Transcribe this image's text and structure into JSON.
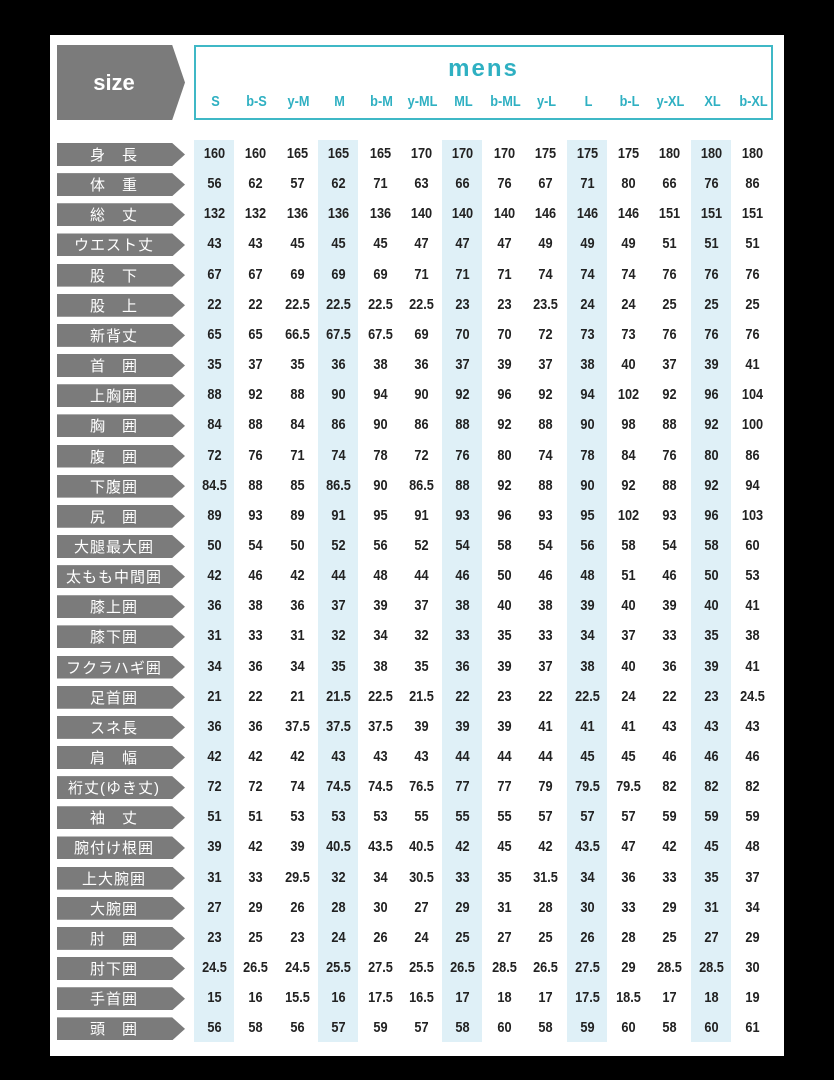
{
  "size_label": "size",
  "group_title": "mens",
  "colors": {
    "accent": "#3fb8c6",
    "label_bg": "#7b7b7b",
    "highlight": "#dff0f7"
  },
  "highlighted_columns": [
    "S",
    "M",
    "ML",
    "L",
    "XL"
  ],
  "columns": [
    "S",
    "b-S",
    "y-M",
    "M",
    "b-M",
    "y-ML",
    "ML",
    "b-ML",
    "y-L",
    "L",
    "b-L",
    "y-XL",
    "XL",
    "b-XL"
  ],
  "rows": [
    {
      "label": "身　長",
      "values": [
        "160",
        "160",
        "165",
        "165",
        "165",
        "170",
        "170",
        "170",
        "175",
        "175",
        "175",
        "180",
        "180",
        "180"
      ]
    },
    {
      "label": "体　重",
      "values": [
        "56",
        "62",
        "57",
        "62",
        "71",
        "63",
        "66",
        "76",
        "67",
        "71",
        "80",
        "66",
        "76",
        "86"
      ]
    },
    {
      "label": "総　丈",
      "values": [
        "132",
        "132",
        "136",
        "136",
        "136",
        "140",
        "140",
        "140",
        "146",
        "146",
        "146",
        "151",
        "151",
        "151"
      ]
    },
    {
      "label": "ウエスト丈",
      "values": [
        "43",
        "43",
        "45",
        "45",
        "45",
        "47",
        "47",
        "47",
        "49",
        "49",
        "49",
        "51",
        "51",
        "51"
      ]
    },
    {
      "label": "股　下",
      "values": [
        "67",
        "67",
        "69",
        "69",
        "69",
        "71",
        "71",
        "71",
        "74",
        "74",
        "74",
        "76",
        "76",
        "76"
      ]
    },
    {
      "label": "股　上",
      "values": [
        "22",
        "22",
        "22.5",
        "22.5",
        "22.5",
        "22.5",
        "23",
        "23",
        "23.5",
        "24",
        "24",
        "25",
        "25",
        "25"
      ]
    },
    {
      "label": "新背丈",
      "values": [
        "65",
        "65",
        "66.5",
        "67.5",
        "67.5",
        "69",
        "70",
        "70",
        "72",
        "73",
        "73",
        "76",
        "76",
        "76"
      ]
    },
    {
      "label": "首　囲",
      "values": [
        "35",
        "37",
        "35",
        "36",
        "38",
        "36",
        "37",
        "39",
        "37",
        "38",
        "40",
        "37",
        "39",
        "41"
      ]
    },
    {
      "label": "上胸囲",
      "values": [
        "88",
        "92",
        "88",
        "90",
        "94",
        "90",
        "92",
        "96",
        "92",
        "94",
        "102",
        "92",
        "96",
        "104"
      ]
    },
    {
      "label": "胸　囲",
      "values": [
        "84",
        "88",
        "84",
        "86",
        "90",
        "86",
        "88",
        "92",
        "88",
        "90",
        "98",
        "88",
        "92",
        "100"
      ]
    },
    {
      "label": "腹　囲",
      "values": [
        "72",
        "76",
        "71",
        "74",
        "78",
        "72",
        "76",
        "80",
        "74",
        "78",
        "84",
        "76",
        "80",
        "86"
      ]
    },
    {
      "label": "下腹囲",
      "values": [
        "84.5",
        "88",
        "85",
        "86.5",
        "90",
        "86.5",
        "88",
        "92",
        "88",
        "90",
        "92",
        "88",
        "92",
        "94"
      ]
    },
    {
      "label": "尻　囲",
      "values": [
        "89",
        "93",
        "89",
        "91",
        "95",
        "91",
        "93",
        "96",
        "93",
        "95",
        "102",
        "93",
        "96",
        "103"
      ]
    },
    {
      "label": "大腿最大囲",
      "values": [
        "50",
        "54",
        "50",
        "52",
        "56",
        "52",
        "54",
        "58",
        "54",
        "56",
        "58",
        "54",
        "58",
        "60"
      ]
    },
    {
      "label": "太もも中間囲",
      "values": [
        "42",
        "46",
        "42",
        "44",
        "48",
        "44",
        "46",
        "50",
        "46",
        "48",
        "51",
        "46",
        "50",
        "53"
      ]
    },
    {
      "label": "膝上囲",
      "values": [
        "36",
        "38",
        "36",
        "37",
        "39",
        "37",
        "38",
        "40",
        "38",
        "39",
        "40",
        "39",
        "40",
        "41"
      ]
    },
    {
      "label": "膝下囲",
      "values": [
        "31",
        "33",
        "31",
        "32",
        "34",
        "32",
        "33",
        "35",
        "33",
        "34",
        "37",
        "33",
        "35",
        "38"
      ]
    },
    {
      "label": "フクラハギ囲",
      "values": [
        "34",
        "36",
        "34",
        "35",
        "38",
        "35",
        "36",
        "39",
        "37",
        "38",
        "40",
        "36",
        "39",
        "41"
      ]
    },
    {
      "label": "足首囲",
      "values": [
        "21",
        "22",
        "21",
        "21.5",
        "22.5",
        "21.5",
        "22",
        "23",
        "22",
        "22.5",
        "24",
        "22",
        "23",
        "24.5"
      ]
    },
    {
      "label": "スネ長",
      "values": [
        "36",
        "36",
        "37.5",
        "37.5",
        "37.5",
        "39",
        "39",
        "39",
        "41",
        "41",
        "41",
        "43",
        "43",
        "43"
      ]
    },
    {
      "label": "肩　幅",
      "values": [
        "42",
        "42",
        "42",
        "43",
        "43",
        "43",
        "44",
        "44",
        "44",
        "45",
        "45",
        "46",
        "46",
        "46"
      ]
    },
    {
      "label": "裄丈(ゆき丈)",
      "values": [
        "72",
        "72",
        "74",
        "74.5",
        "74.5",
        "76.5",
        "77",
        "77",
        "79",
        "79.5",
        "79.5",
        "82",
        "82",
        "82"
      ]
    },
    {
      "label": "袖　丈",
      "values": [
        "51",
        "51",
        "53",
        "53",
        "53",
        "55",
        "55",
        "55",
        "57",
        "57",
        "57",
        "59",
        "59",
        "59"
      ]
    },
    {
      "label": "腕付け根囲",
      "values": [
        "39",
        "42",
        "39",
        "40.5",
        "43.5",
        "40.5",
        "42",
        "45",
        "42",
        "43.5",
        "47",
        "42",
        "45",
        "48"
      ]
    },
    {
      "label": "上大腕囲",
      "values": [
        "31",
        "33",
        "29.5",
        "32",
        "34",
        "30.5",
        "33",
        "35",
        "31.5",
        "34",
        "36",
        "33",
        "35",
        "37"
      ]
    },
    {
      "label": "大腕囲",
      "values": [
        "27",
        "29",
        "26",
        "28",
        "30",
        "27",
        "29",
        "31",
        "28",
        "30",
        "33",
        "29",
        "31",
        "34"
      ]
    },
    {
      "label": "肘　囲",
      "values": [
        "23",
        "25",
        "23",
        "24",
        "26",
        "24",
        "25",
        "27",
        "25",
        "26",
        "28",
        "25",
        "27",
        "29"
      ]
    },
    {
      "label": "肘下囲",
      "values": [
        "24.5",
        "26.5",
        "24.5",
        "25.5",
        "27.5",
        "25.5",
        "26.5",
        "28.5",
        "26.5",
        "27.5",
        "29",
        "28.5",
        "28.5",
        "30"
      ]
    },
    {
      "label": "手首囲",
      "values": [
        "15",
        "16",
        "15.5",
        "16",
        "17.5",
        "16.5",
        "17",
        "18",
        "17",
        "17.5",
        "18.5",
        "17",
        "18",
        "19"
      ]
    },
    {
      "label": "頭　囲",
      "values": [
        "56",
        "58",
        "56",
        "57",
        "59",
        "57",
        "58",
        "60",
        "58",
        "59",
        "60",
        "58",
        "60",
        "61"
      ]
    }
  ]
}
